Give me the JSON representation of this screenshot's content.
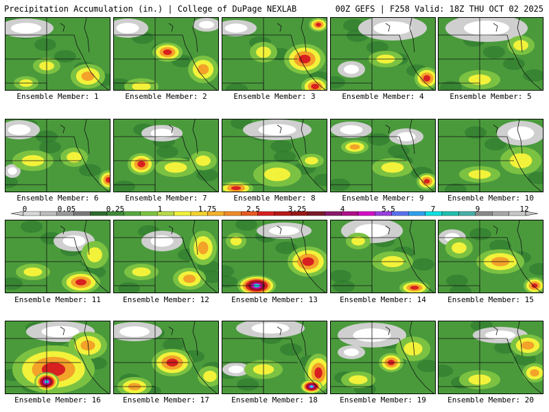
{
  "header": {
    "left": "Precipitation Accumulation (in.) | College of DuPage NEXLAB",
    "right": "00Z GEFS | F258 Valid: 18Z THU OCT 02 2025"
  },
  "member_prefix": "Ensemble Member:",
  "members": [
    "Ensemble Member: 1",
    "Ensemble Member: 2",
    "Ensemble Member: 3",
    "Ensemble Member: 4",
    "Ensemble Member: 5",
    "Ensemble Member: 6",
    "Ensemble Member: 7",
    "Ensemble Member: 8",
    "Ensemble Member: 9",
    "Ensemble Member: 10",
    "Ensemble Member: 11",
    "Ensemble Member: 12",
    "Ensemble Member: 13",
    "Ensemble Member: 14",
    "Ensemble Member: 15",
    "Ensemble Member: 16",
    "Ensemble Member: 17",
    "Ensemble Member: 18",
    "Ensemble Member: 19",
    "Ensemble Member: 20"
  ],
  "colorbar": {
    "unit": "in.",
    "tick_labels": [
      "0",
      "0.05",
      "0.25",
      "1",
      "1.75",
      "2.5",
      "3.25",
      "4",
      "5.5",
      "7",
      "9",
      "12"
    ],
    "colors": [
      "#d8d8d8",
      "#bdbdbd",
      "#9a9a9a",
      "#7a7a7a",
      "#2f6b2f",
      "#3f8a3a",
      "#56a83f",
      "#7cc242",
      "#b6d94a",
      "#f2f23a",
      "#f6d42e",
      "#f7b22a",
      "#f08a28",
      "#e85a22",
      "#d82020",
      "#b81818",
      "#981818",
      "#7a1b2a",
      "#8a1a6a",
      "#b0108a",
      "#d410c8",
      "#9a40e0",
      "#5a70f0",
      "#30a0f0",
      "#10e0e0",
      "#20c0b0",
      "#48b0a8",
      "#8a8a8a",
      "#a8a8a8",
      "#c8c8c8"
    ]
  },
  "legend_palette": {
    "white": "#ffffff",
    "light_gray": "#cfcfcf",
    "gray": "#9a9a9a",
    "dark_green": "#2f7a2f",
    "green": "#4a9a3c",
    "light_green": "#7cc242",
    "yellow": "#f2f23a",
    "orange": "#f3a22a",
    "red": "#d82020",
    "dark_red": "#8a1020",
    "magenta": "#c010b0",
    "cyan": "#10e0e0"
  }
}
